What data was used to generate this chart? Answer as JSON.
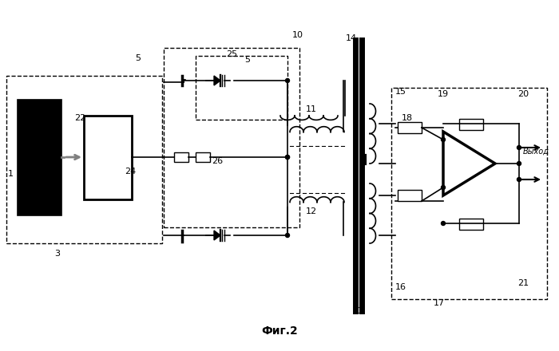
{
  "title": "Фиг.2",
  "bg_color": "#ffffff",
  "line_color": "#000000",
  "fig_width": 7.0,
  "fig_height": 4.4
}
